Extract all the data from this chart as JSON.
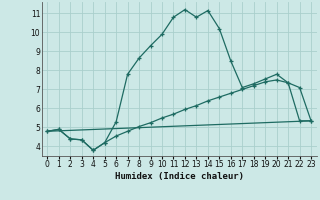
{
  "xlabel": "Humidex (Indice chaleur)",
  "background_color": "#cce8e6",
  "line_color": "#1e6b62",
  "grid_color": "#aacfcc",
  "x_min": -0.5,
  "x_max": 23.5,
  "y_min": 3.5,
  "y_max": 11.6,
  "yticks": [
    4,
    5,
    6,
    7,
    8,
    9,
    10,
    11
  ],
  "xticks": [
    0,
    1,
    2,
    3,
    4,
    5,
    6,
    7,
    8,
    9,
    10,
    11,
    12,
    13,
    14,
    15,
    16,
    17,
    18,
    19,
    20,
    21,
    22,
    23
  ],
  "line1_x": [
    0,
    1,
    2,
    3,
    4,
    5,
    6,
    7,
    8,
    9,
    10,
    11,
    12,
    13,
    14,
    15,
    16,
    17,
    18,
    19,
    20,
    21,
    22,
    23
  ],
  "line1_y": [
    4.8,
    4.9,
    4.4,
    4.35,
    3.8,
    4.2,
    5.3,
    7.8,
    8.65,
    9.3,
    9.9,
    10.8,
    11.2,
    10.8,
    11.15,
    10.2,
    8.5,
    7.1,
    7.3,
    7.55,
    7.8,
    7.35,
    7.1,
    5.35
  ],
  "line2_x": [
    0,
    1,
    2,
    3,
    4,
    5,
    6,
    7,
    8,
    9,
    10,
    11,
    12,
    13,
    14,
    15,
    16,
    17,
    18,
    19,
    20,
    21,
    22,
    23
  ],
  "line2_y": [
    4.8,
    4.9,
    4.4,
    4.35,
    3.8,
    4.2,
    4.55,
    4.8,
    5.05,
    5.25,
    5.5,
    5.7,
    5.95,
    6.15,
    6.4,
    6.6,
    6.8,
    7.0,
    7.2,
    7.4,
    7.5,
    7.35,
    5.35,
    5.35
  ],
  "line3_x": [
    0,
    23
  ],
  "line3_y": [
    4.8,
    5.35
  ]
}
